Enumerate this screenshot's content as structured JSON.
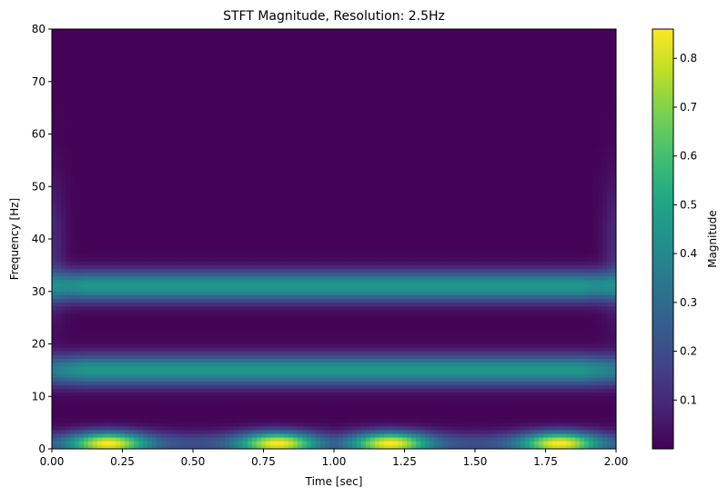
{
  "chart_data": {
    "type": "heatmap",
    "title": "STFT Magnitude, Resolution: 2.5Hz",
    "xlabel": "Time [sec]",
    "ylabel": "Frequency [Hz]",
    "colorbar_label": "Magnitude",
    "colormap": "viridis",
    "xlim": [
      0,
      2
    ],
    "ylim": [
      0,
      80
    ],
    "color_range": [
      0.0,
      0.86
    ],
    "x_ticks": [
      0,
      0.25,
      0.5,
      0.75,
      1.0,
      1.25,
      1.5,
      1.75,
      2.0
    ],
    "x_tick_labels": [
      "0.00",
      "0.25",
      "0.50",
      "0.75",
      "1.00",
      "1.25",
      "1.50",
      "1.75",
      "2.00"
    ],
    "y_ticks": [
      0,
      10,
      20,
      30,
      40,
      50,
      60,
      70,
      80
    ],
    "y_tick_labels": [
      "0",
      "10",
      "20",
      "30",
      "40",
      "50",
      "60",
      "70",
      "80"
    ],
    "colorbar_ticks": [
      0.1,
      0.2,
      0.3,
      0.4,
      0.5,
      0.6,
      0.7,
      0.8
    ],
    "colorbar_tick_labels": [
      "0.1",
      "0.2",
      "0.3",
      "0.4",
      "0.5",
      "0.6",
      "0.7",
      "0.8"
    ],
    "frequency_bands": [
      {
        "center_hz": 31,
        "peak_magnitude": 0.45
      },
      {
        "center_hz": 15,
        "peak_magnitude": 0.45
      },
      {
        "center_hz": 1,
        "peak_magnitude": 0.86,
        "peak_times_sec": [
          0.2,
          0.8,
          1.2,
          1.8
        ]
      }
    ],
    "grid": false
  }
}
